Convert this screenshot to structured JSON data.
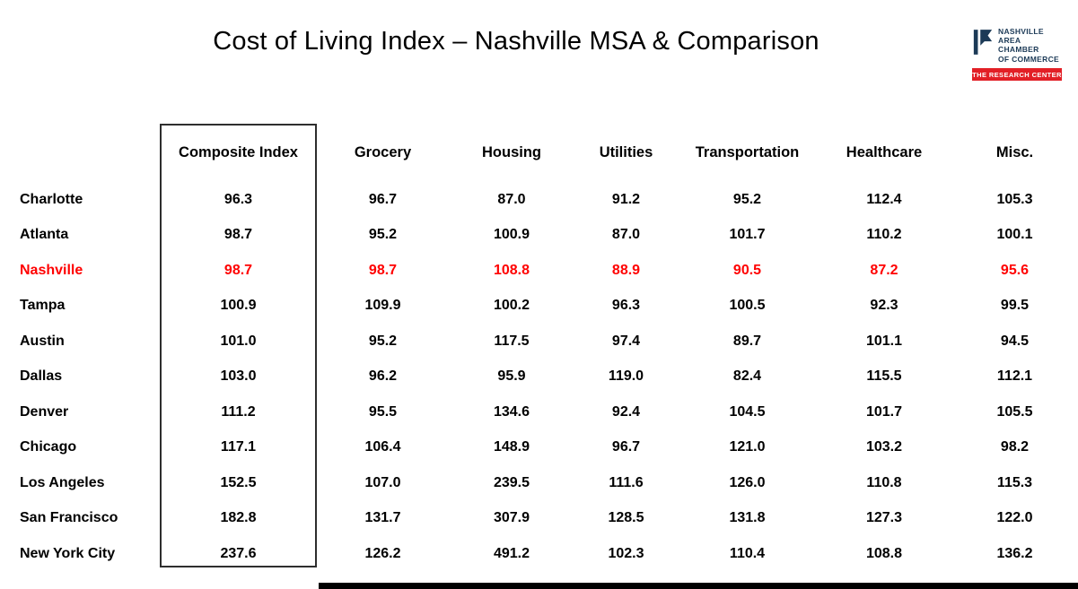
{
  "title": "Cost of Living Index – Nashville MSA & Comparison",
  "logo": {
    "lines": [
      "NASHVILLE",
      "AREA",
      "CHAMBER",
      "OF COMMERCE"
    ],
    "banner": "THE RESEARCH CENTER",
    "navy_color": "#1c3a57",
    "red_color": "#e21f26"
  },
  "chart_data": {
    "type": "table",
    "title": "Cost of Living Index – Nashville MSA & Comparison",
    "columns": [
      "Composite Index",
      "Grocery",
      "Housing",
      "Utilities",
      "Transportation",
      "Healthcare",
      "Misc."
    ],
    "row_labels": [
      "Charlotte",
      "Atlanta",
      "Nashville",
      "Tampa",
      "Austin",
      "Dallas",
      "Denver",
      "Chicago",
      "Los Angeles",
      "San Francisco",
      "New York City"
    ],
    "values": [
      [
        "96.3",
        "96.7",
        "87.0",
        "91.2",
        "95.2",
        "112.4",
        "105.3"
      ],
      [
        "98.7",
        "95.2",
        "100.9",
        "87.0",
        "101.7",
        "110.2",
        "100.1"
      ],
      [
        "98.7",
        "98.7",
        "108.8",
        "88.9",
        "90.5",
        "87.2",
        "95.6"
      ],
      [
        "100.9",
        "109.9",
        "100.2",
        "96.3",
        "100.5",
        "92.3",
        "99.5"
      ],
      [
        "101.0",
        "95.2",
        "117.5",
        "97.4",
        "89.7",
        "101.1",
        "94.5"
      ],
      [
        "103.0",
        "96.2",
        "95.9",
        "119.0",
        "82.4",
        "115.5",
        "112.1"
      ],
      [
        "111.2",
        "95.5",
        "134.6",
        "92.4",
        "104.5",
        "101.7",
        "105.5"
      ],
      [
        "117.1",
        "106.4",
        "148.9",
        "96.7",
        "121.0",
        "103.2",
        "98.2"
      ],
      [
        "152.5",
        "107.0",
        "239.5",
        "111.6",
        "126.0",
        "110.8",
        "115.3"
      ],
      [
        "182.8",
        "131.7",
        "307.9",
        "128.5",
        "131.8",
        "127.3",
        "122.0"
      ],
      [
        "237.6",
        "126.2",
        "491.2",
        "102.3",
        "110.4",
        "108.8",
        "136.2"
      ]
    ],
    "highlight_row": "Nashville",
    "highlight_color": "#ff0000",
    "layout_note": "Composite Index column framed with black outline box"
  }
}
